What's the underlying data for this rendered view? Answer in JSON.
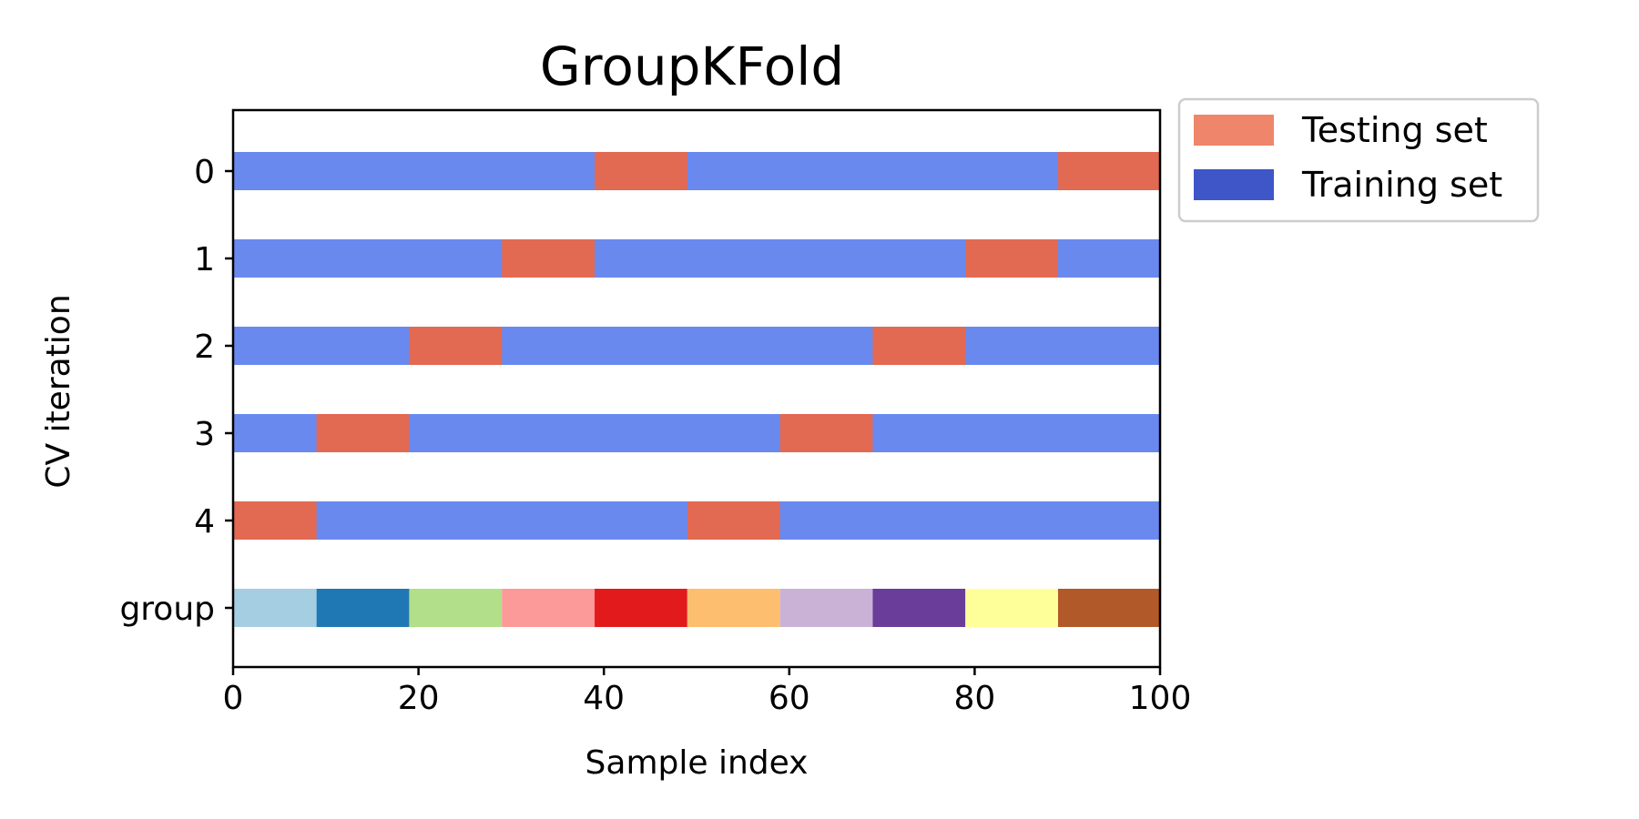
{
  "chart_data": {
    "type": "bar",
    "orientation": "horizontal",
    "title": "GroupKFold",
    "xlabel": "Sample index",
    "ylabel": "CV iteration",
    "xlim": [
      0,
      100
    ],
    "x_ticks": [
      "0",
      "20",
      "40",
      "60",
      "80",
      "100"
    ],
    "y_tick_labels": [
      "0",
      "1",
      "2",
      "3",
      "4",
      "group"
    ],
    "grid": false,
    "legend_position": "outside-upper-right",
    "legend": [
      {
        "label": "Testing set",
        "color": "#ef856a"
      },
      {
        "label": "Training set",
        "color": "#3f56c9"
      }
    ],
    "bar_colors": {
      "training": "#6989ef",
      "testing": "#e26952"
    },
    "iterations": [
      {
        "label": "0",
        "test_ranges": [
          [
            39,
            49
          ],
          [
            89,
            100
          ]
        ]
      },
      {
        "label": "1",
        "test_ranges": [
          [
            29,
            39
          ],
          [
            79,
            89
          ]
        ]
      },
      {
        "label": "2",
        "test_ranges": [
          [
            19,
            29
          ],
          [
            69,
            79
          ]
        ]
      },
      {
        "label": "3",
        "test_ranges": [
          [
            9,
            19
          ],
          [
            59,
            69
          ]
        ]
      },
      {
        "label": "4",
        "test_ranges": [
          [
            0,
            9
          ],
          [
            49,
            59
          ]
        ]
      }
    ],
    "groups": {
      "label": "group",
      "ranges": [
        [
          0,
          9
        ],
        [
          9,
          19
        ],
        [
          19,
          29
        ],
        [
          29,
          39
        ],
        [
          39,
          49
        ],
        [
          49,
          59
        ],
        [
          59,
          69
        ],
        [
          69,
          79
        ],
        [
          79,
          89
        ],
        [
          89,
          100
        ]
      ],
      "colors": [
        "#a6cee3",
        "#1f78b4",
        "#b2df8a",
        "#fb9a99",
        "#e31a1c",
        "#fdbf6f",
        "#cab2d6",
        "#6a3d9a",
        "#ffff99",
        "#b15928"
      ]
    }
  }
}
